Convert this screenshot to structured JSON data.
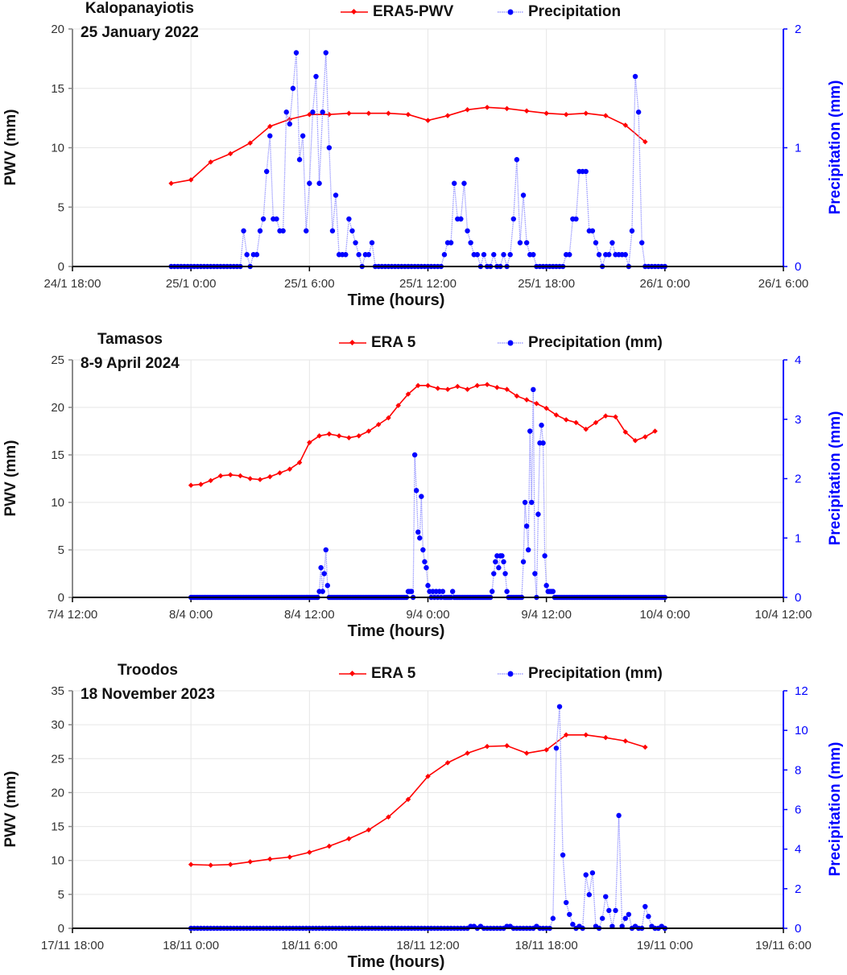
{
  "colors": {
    "era": "#ff0000",
    "precip": "#0000ff",
    "precip_line": "#9a9aff",
    "grid": "#e6e6e6"
  },
  "chart_data": [
    {
      "type": "line",
      "title": "Kalopanayiotis",
      "subtitle": "25 January 2022",
      "xlabel": "Time (hours)",
      "ylabel": "PWV (mm)",
      "y2label": "Precipitation (mm)",
      "legend": [
        "ERA5-PWV",
        "Precipitation"
      ],
      "legend_placement": "top-center",
      "grid": true,
      "x_unit": "hours since 24/1 18:00",
      "xlim": [
        0,
        36
      ],
      "x_tick_step": 6,
      "x_ticks": [
        "24/1 18:00",
        "25/1 0:00",
        "25/1 6:00",
        "25/1 12:00",
        "25/1 18:00",
        "26/1 0:00",
        "26/1 6:00"
      ],
      "ylim": [
        0,
        20
      ],
      "y_ticks": [
        "0",
        "5",
        "10",
        "15",
        "20"
      ],
      "y2lim": [
        0,
        2
      ],
      "y2_ticks": [
        "0",
        "1",
        "2"
      ],
      "series": [
        {
          "name": "ERA5-PWV",
          "axis": "left",
          "start_hour": 5,
          "step_min": 60,
          "values": [
            7.0,
            7.3,
            8.8,
            9.5,
            10.4,
            11.8,
            12.4,
            12.8,
            12.8,
            12.9,
            12.9,
            12.9,
            12.8,
            12.3,
            12.7,
            13.2,
            13.4,
            13.3,
            13.1,
            12.9,
            12.8,
            12.9,
            12.7,
            11.9,
            10.5
          ]
        },
        {
          "name": "Precipitation",
          "axis": "right",
          "start_hour": 5,
          "step_min": 10,
          "values": [
            0,
            0,
            0,
            0,
            0,
            0,
            0,
            0,
            0,
            0,
            0,
            0,
            0,
            0,
            0,
            0,
            0,
            0,
            0,
            0,
            0,
            0,
            0.3,
            0.1,
            0,
            0.1,
            0.1,
            0.3,
            0.4,
            0.8,
            1.1,
            0.4,
            0.4,
            0.3,
            0.3,
            1.3,
            1.2,
            1.5,
            1.8,
            0.9,
            1.1,
            0.3,
            0.7,
            1.3,
            1.6,
            0.7,
            1.3,
            1.8,
            1.0,
            0.3,
            0.6,
            0.1,
            0.1,
            0.1,
            0.4,
            0.3,
            0.2,
            0.1,
            0,
            0.1,
            0.1,
            0.2,
            0,
            0,
            0,
            0,
            0,
            0,
            0,
            0,
            0,
            0,
            0,
            0,
            0,
            0,
            0,
            0,
            0,
            0,
            0,
            0,
            0,
            0.1,
            0.2,
            0.2,
            0.7,
            0.4,
            0.4,
            0.7,
            0.3,
            0.2,
            0.1,
            0.1,
            0,
            0.1,
            0,
            0,
            0.1,
            0,
            0,
            0.1,
            0,
            0.1,
            0.4,
            0.9,
            0.2,
            0.6,
            0.2,
            0.1,
            0.1,
            0,
            0,
            0,
            0,
            0,
            0,
            0,
            0,
            0,
            0.1,
            0.1,
            0.4,
            0.4,
            0.8,
            0.8,
            0.8,
            0.3,
            0.3,
            0.2,
            0.1,
            0,
            0.1,
            0.1,
            0.2,
            0.1,
            0.1,
            0.1,
            0.1,
            0,
            0.3,
            1.6,
            1.3,
            0.2,
            0,
            0,
            0,
            0,
            0,
            0,
            0
          ]
        }
      ]
    },
    {
      "type": "line",
      "title": "Tamasos",
      "subtitle": "8-9 April 2024",
      "xlabel": "Time (hours)",
      "ylabel": "PWV (mm)",
      "y2label": "Precipitation (mm)",
      "legend": [
        "ERA 5",
        "Precipitation (mm)"
      ],
      "legend_placement": "top-center",
      "grid": true,
      "x_unit": "hours since 7/4 12:00",
      "xlim": [
        0,
        72
      ],
      "x_tick_step": 12,
      "x_ticks": [
        "7/4 12:00",
        "8/4 0:00",
        "8/4 12:00",
        "9/4 0:00",
        "9/4 12:00",
        "10/4 0:00",
        "10/4 12:00"
      ],
      "ylim": [
        0,
        25
      ],
      "y_ticks": [
        "0",
        "5",
        "10",
        "15",
        "20",
        "25"
      ],
      "y2lim": [
        0,
        4
      ],
      "y2_ticks": [
        "0",
        "1",
        "2",
        "3",
        "4"
      ],
      "series": [
        {
          "name": "ERA 5",
          "axis": "left",
          "start_hour": 12,
          "step_min": 60,
          "values": [
            11.8,
            11.9,
            12.3,
            12.8,
            12.9,
            12.8,
            12.5,
            12.4,
            12.7,
            13.1,
            13.5,
            14.2,
            16.3,
            17.0,
            17.2,
            17.0,
            16.8,
            17.0,
            17.5,
            18.2,
            18.9,
            20.2,
            21.4,
            22.3,
            22.3,
            22.0,
            21.9,
            22.2,
            21.9,
            22.3,
            22.4,
            22.1,
            21.9,
            21.2,
            20.8,
            20.4,
            19.9,
            19.2,
            18.7,
            18.4,
            17.7,
            18.4,
            19.1,
            19.0,
            17.4,
            16.5,
            16.9,
            17.5
          ]
        },
        {
          "name": "Precipitation (mm)",
          "axis": "right",
          "start_hour": 12,
          "end_hour": 60,
          "step_min": 10,
          "nonzero_min_mm": [
            [
              780,
              0.1
            ],
            [
              790,
              0.5
            ],
            [
              800,
              0.1
            ],
            [
              810,
              0.4
            ],
            [
              820,
              0.8
            ],
            [
              830,
              0.2
            ],
            [
              1320,
              0.1
            ],
            [
              1330,
              0.1
            ],
            [
              1340,
              0.1
            ],
            [
              1360,
              2.4
            ],
            [
              1370,
              1.8
            ],
            [
              1380,
              1.1
            ],
            [
              1390,
              1.0
            ],
            [
              1400,
              1.7
            ],
            [
              1410,
              0.8
            ],
            [
              1420,
              0.6
            ],
            [
              1430,
              0.5
            ],
            [
              1440,
              0.2
            ],
            [
              1450,
              0.1
            ],
            [
              1470,
              0.1
            ],
            [
              1490,
              0.1
            ],
            [
              1510,
              0.1
            ],
            [
              1530,
              0.1
            ],
            [
              1590,
              0.1
            ],
            [
              1830,
              0.1
            ],
            [
              1840,
              0.4
            ],
            [
              1850,
              0.6
            ],
            [
              1860,
              0.7
            ],
            [
              1870,
              0.5
            ],
            [
              1880,
              0.7
            ],
            [
              1890,
              0.7
            ],
            [
              1900,
              0.6
            ],
            [
              1910,
              0.4
            ],
            [
              1920,
              0.1
            ],
            [
              2020,
              0.6
            ],
            [
              2030,
              1.6
            ],
            [
              2040,
              1.2
            ],
            [
              2050,
              0.8
            ],
            [
              2060,
              2.8
            ],
            [
              2070,
              1.6
            ],
            [
              2080,
              3.5
            ],
            [
              2090,
              0.4
            ],
            [
              2110,
              1.4
            ],
            [
              2120,
              2.6
            ],
            [
              2130,
              2.9
            ],
            [
              2140,
              2.6
            ],
            [
              2150,
              0.7
            ],
            [
              2160,
              0.2
            ],
            [
              2170,
              0.1
            ],
            [
              2180,
              0.1
            ],
            [
              2190,
              0.1
            ],
            [
              2200,
              0.1
            ]
          ]
        }
      ]
    },
    {
      "type": "line",
      "title": "Troodos",
      "subtitle": "18 November 2023",
      "xlabel": "Time (hours)",
      "ylabel": "PWV (mm)",
      "y2label": "Precipitation (mm)",
      "legend": [
        "ERA 5",
        "Precipitation (mm)"
      ],
      "legend_placement": "top-center",
      "grid": true,
      "x_unit": "hours since 17/11 18:00",
      "xlim": [
        0,
        36
      ],
      "x_tick_step": 6,
      "x_ticks": [
        "17/11 18:00",
        "18/11 0:00",
        "18/11 6:00",
        "18/11 12:00",
        "18/11 18:00",
        "19/11 0:00",
        "19/11 6:00"
      ],
      "ylim": [
        0,
        35
      ],
      "y_ticks": [
        "0",
        "5",
        "10",
        "15",
        "20",
        "25",
        "30",
        "35"
      ],
      "y2lim": [
        0,
        12
      ],
      "y2_ticks": [
        "0",
        "2",
        "4",
        "6",
        "8",
        "10",
        "12"
      ],
      "series": [
        {
          "name": "ERA 5",
          "axis": "left",
          "start_hour": 6,
          "step_min": 60,
          "values": [
            9.4,
            9.3,
            9.4,
            9.8,
            10.2,
            10.5,
            11.2,
            12.1,
            13.2,
            14.5,
            16.4,
            19.0,
            22.4,
            24.4,
            25.8,
            26.8,
            26.9,
            25.8,
            26.3,
            28.5,
            28.5,
            28.1,
            27.6,
            26.7
          ]
        },
        {
          "name": "Precipitation (mm)",
          "axis": "right",
          "start_hour": 6,
          "end_hour": 30,
          "step_min": 10,
          "nonzero_min_mm": [
            [
              850,
              0.1
            ],
            [
              860,
              0.1
            ],
            [
              880,
              0.1
            ],
            [
              960,
              0.1
            ],
            [
              970,
              0.1
            ],
            [
              1050,
              0.1
            ],
            [
              1100,
              0.5
            ],
            [
              1110,
              9.1
            ],
            [
              1120,
              11.2
            ],
            [
              1130,
              3.7
            ],
            [
              1140,
              1.3
            ],
            [
              1150,
              0.7
            ],
            [
              1160,
              0.2
            ],
            [
              1180,
              0.1
            ],
            [
              1200,
              2.7
            ],
            [
              1210,
              1.7
            ],
            [
              1220,
              2.8
            ],
            [
              1230,
              0.1
            ],
            [
              1250,
              0.5
            ],
            [
              1260,
              1.6
            ],
            [
              1270,
              0.9
            ],
            [
              1280,
              0.1
            ],
            [
              1290,
              0.9
            ],
            [
              1300,
              5.7
            ],
            [
              1310,
              0.1
            ],
            [
              1320,
              0.5
            ],
            [
              1330,
              0.7
            ],
            [
              1350,
              0.1
            ],
            [
              1380,
              1.1
            ],
            [
              1390,
              0.6
            ],
            [
              1400,
              0.1
            ],
            [
              1430,
              0.1
            ]
          ]
        }
      ]
    }
  ]
}
